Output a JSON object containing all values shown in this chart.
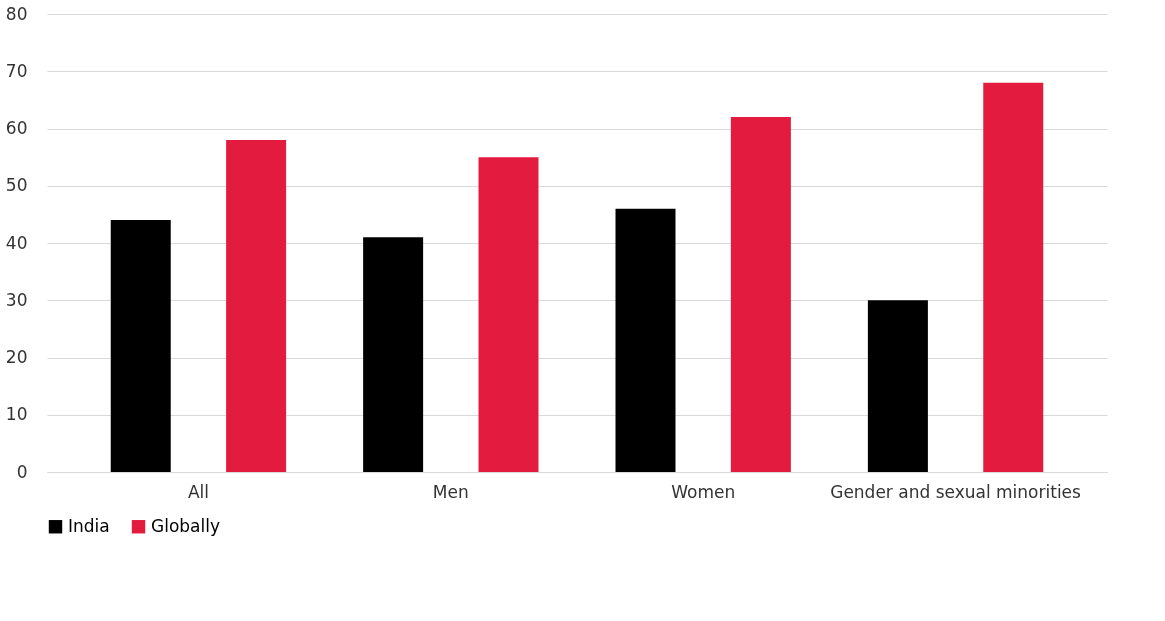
{
  "chart_data": {
    "type": "bar",
    "categories": [
      "All",
      "Men",
      "Women",
      "Gender and sexual minorities"
    ],
    "series": [
      {
        "name": "India",
        "color": "#000000",
        "values": [
          44,
          41,
          46,
          30
        ]
      },
      {
        "name": "Globally",
        "color": "#e31b3e",
        "values": [
          58,
          55,
          62,
          68
        ]
      }
    ],
    "ylim": [
      0,
      80
    ],
    "yticks": [
      0,
      10,
      20,
      30,
      40,
      50,
      60,
      70,
      80
    ],
    "grid": "y",
    "legend": "bottom"
  }
}
